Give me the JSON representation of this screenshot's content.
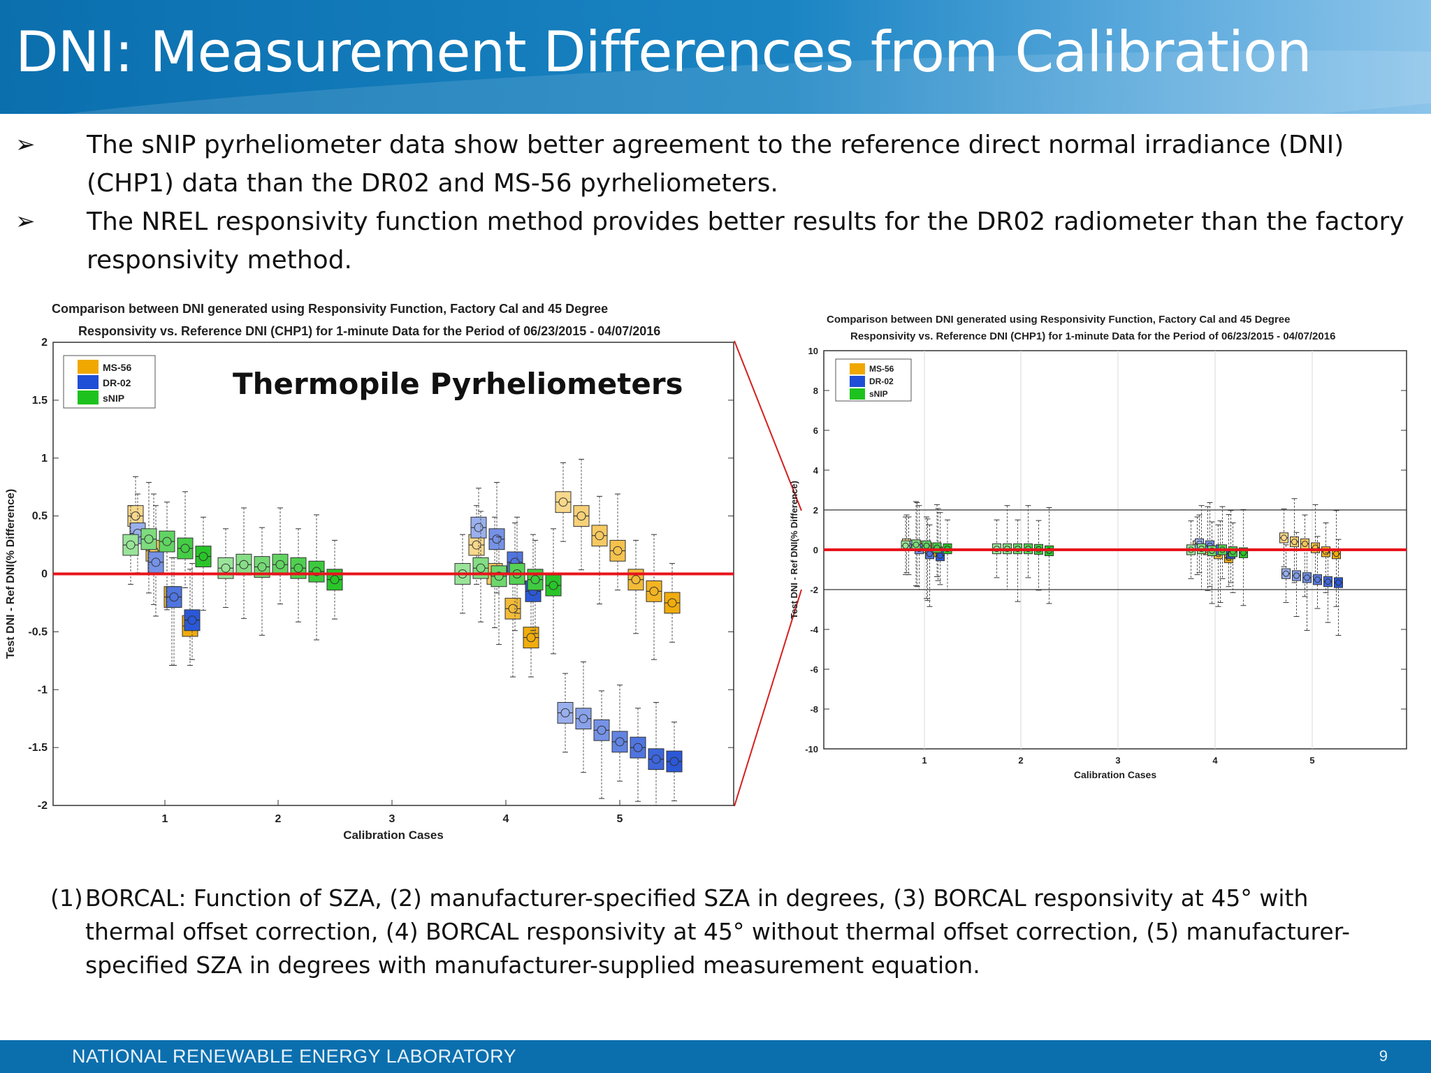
{
  "slide": {
    "title": "DNI: Measurement Differences from Calibration",
    "bullets": [
      "The sNIP pyrheliometer data show better agreement to the reference direct normal irradiance (DNI) (CHP1) data than the DR02 and MS-56 pyrheliometers.",
      "The NREL responsivity function method provides better results for the DR02 radiometer than the factory responsivity method."
    ],
    "bullet_marker": "➢",
    "footnote_number": "(1)",
    "footnote": "BORCAL: Function of SZA, (2) manufacturer-specified SZA in degrees, (3) BORCAL responsivity at 45° with thermal offset correction, (4) BORCAL responsivity at 45° without thermal offset correction, (5) manufacturer-specified SZA in degrees with manufacturer-supplied measurement equation.",
    "footer_org": "NATIONAL RENEWABLE ENERGY LABORATORY",
    "page_number": "9",
    "colors": {
      "header": "#0b6fae",
      "reference_line": "#e8141b"
    }
  },
  "chart_data": [
    {
      "type": "box",
      "title_line1": "Comparison between DNI generated using Responsivity Function, Factory Cal and 45 Degree",
      "title_line2": "Responsivity  vs. Reference DNI (CHP1) for 1-minute Data for the Period of 06/23/2015 - 04/07/2016",
      "annotation": "Thermopile Pyrheliometers",
      "xlabel": "Calibration Cases",
      "ylabel": "Test DNI  - Ref DNI(% Difference)",
      "xlim": [
        0,
        5
      ],
      "ylim": [
        -2,
        2
      ],
      "x_ticks": [
        "1",
        "2",
        "3",
        "4",
        "5"
      ],
      "y_ticks": [
        "2",
        "1.5",
        "1",
        "0.5",
        "0",
        "-0.5",
        "-1",
        "-1.5",
        "-2"
      ],
      "reference_line_y": 0,
      "legend_position": "top-left",
      "series": [
        {
          "name": "MS-56",
          "color": "#f0a800",
          "medians": {
            "1": [
              0.5,
              0.2,
              -0.2,
              -0.45
            ],
            "4": [
              0.25,
              0.0,
              -0.3,
              -0.55
            ],
            "5": [
              0.62,
              0.5,
              0.33,
              0.2,
              -0.05,
              -0.15,
              -0.25
            ]
          }
        },
        {
          "name": "DR-02",
          "color": "#1f4fd6",
          "medians": {
            "1": [
              0.35,
              0.1,
              -0.2,
              -0.4
            ],
            "4": [
              0.4,
              0.3,
              0.1,
              -0.15
            ],
            "5": [
              -1.2,
              -1.25,
              -1.35,
              -1.45,
              -1.5,
              -1.6,
              -1.62
            ]
          }
        },
        {
          "name": "sNIP",
          "color": "#1ec21e",
          "medians": {
            "1": [
              0.25,
              0.3,
              0.28,
              0.22,
              0.15
            ],
            "2": [
              0.05,
              0.08,
              0.06,
              0.08,
              0.05,
              0.02,
              -0.05
            ],
            "4": [
              0.0,
              0.05,
              -0.02,
              0.0,
              -0.05,
              -0.1
            ]
          }
        }
      ]
    },
    {
      "type": "box",
      "title_line1": "Comparison between DNI generated using Responsivity Function, Factory Cal and 45 Degree",
      "title_line2": "Responsivity  vs. Reference DNI (CHP1) for 1-minute Data for the Period of 06/23/2015 - 04/07/2016",
      "xlabel": "Calibration Cases",
      "ylabel": "Test DNI  - Ref DNI(% Difference)",
      "xlim": [
        0,
        5
      ],
      "ylim": [
        -10,
        10
      ],
      "x_ticks": [
        "1",
        "2",
        "3",
        "4",
        "5"
      ],
      "y_ticks": [
        "10",
        "8",
        "6",
        "4",
        "2",
        "0",
        "-2",
        "-4",
        "-6",
        "-8",
        "-10"
      ],
      "reference_line_y": 0,
      "threshold_lines_y": [
        2,
        -2
      ],
      "legend_position": "top-left",
      "series": [
        {
          "name": "MS-56",
          "color": "#f0a800"
        },
        {
          "name": "DR-02",
          "color": "#1f4fd6"
        },
        {
          "name": "sNIP",
          "color": "#1ec21e"
        }
      ]
    }
  ]
}
